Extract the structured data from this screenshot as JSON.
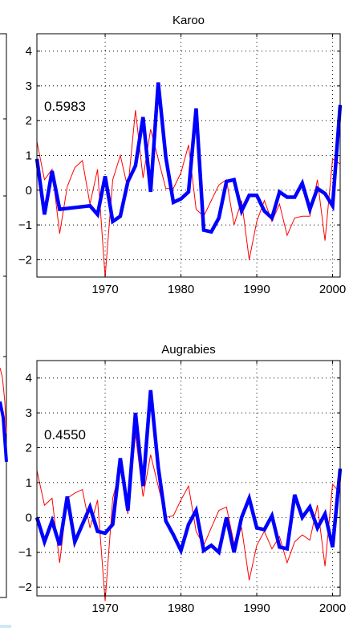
{
  "chart_data": [
    {
      "type": "line",
      "title": "Karoo",
      "annotation": "0.5983",
      "xlim": [
        1961,
        2001
      ],
      "ylim": [
        -2.5,
        4.5
      ],
      "xticks": [
        1970,
        1980,
        1990,
        2000
      ],
      "yticks": [
        -2,
        -1,
        0,
        1,
        2,
        3,
        4
      ],
      "grid": true,
      "series": [
        {
          "color": "#0000ff",
          "x": [
            1961,
            1962,
            1963,
            1964,
            1966,
            1968,
            1969,
            1970,
            1971,
            1972,
            1973,
            1974,
            1975,
            1976,
            1977,
            1978,
            1979,
            1980,
            1981,
            1982,
            1983,
            1984,
            1985,
            1986,
            1987,
            1988,
            1989,
            1990,
            1991,
            1992,
            1993,
            1994,
            1995,
            1996,
            1997,
            1998,
            1999,
            2000,
            2001
          ],
          "y": [
            0.9,
            -0.7,
            0.55,
            -0.55,
            -0.5,
            -0.45,
            -0.7,
            0.4,
            -0.9,
            -0.75,
            0.25,
            0.7,
            2.1,
            -0.05,
            3.1,
            0.95,
            -0.35,
            -0.25,
            -0.05,
            2.35,
            -1.15,
            -1.2,
            -0.8,
            0.25,
            0.3,
            -0.6,
            -0.15,
            -0.15,
            -0.6,
            -0.8,
            -0.05,
            -0.2,
            -0.2,
            0.2,
            -0.55,
            0.05,
            -0.1,
            -0.45,
            2.45
          ]
        },
        {
          "color": "#ff0000",
          "x": [
            1961,
            1962,
            1963,
            1964,
            1965,
            1966,
            1967,
            1968,
            1969,
            1970,
            1971,
            1972,
            1973,
            1974,
            1975,
            1976,
            1977,
            1978,
            1979,
            1980,
            1981,
            1982,
            1983,
            1984,
            1985,
            1986,
            1987,
            1988,
            1989,
            1990,
            1991,
            1992,
            1993,
            1994,
            1995,
            1996,
            1997,
            1998,
            1999,
            2000,
            2001
          ],
          "y": [
            1.4,
            0.3,
            0.6,
            -1.25,
            0.1,
            0.65,
            0.85,
            -0.4,
            0.6,
            -2.5,
            0.3,
            1.0,
            0.05,
            2.3,
            0.35,
            1.75,
            0.9,
            0.05,
            0.05,
            0.5,
            1.3,
            -0.55,
            -0.75,
            -0.3,
            0.15,
            0.3,
            -1.0,
            -0.3,
            -2.0,
            -0.9,
            -0.3,
            -0.9,
            -0.4,
            -1.3,
            -0.8,
            -0.75,
            -0.75,
            0.3,
            -1.45,
            0.9,
            0.75
          ]
        }
      ]
    },
    {
      "type": "line",
      "title": "Augrabies",
      "annotation": "0.4550",
      "xlim": [
        1961,
        2001
      ],
      "ylim": [
        -2.25,
        4.5
      ],
      "xticks": [
        1970,
        1980,
        1990,
        2000
      ],
      "yticks": [
        -2,
        -1,
        0,
        1,
        2,
        3,
        4
      ],
      "grid": true,
      "series": [
        {
          "color": "#0000ff",
          "x": [
            1961,
            1962,
            1963,
            1964,
            1965,
            1966,
            1967,
            1968,
            1969,
            1970,
            1971,
            1972,
            1973,
            1974,
            1975,
            1976,
            1977,
            1978,
            1979,
            1980,
            1981,
            1982,
            1983,
            1984,
            1985,
            1986,
            1987,
            1988,
            1989,
            1990,
            1991,
            1992,
            1993,
            1994,
            1995,
            1996,
            1997,
            1998,
            1999,
            2000,
            2001
          ],
          "y": [
            0,
            -0.7,
            -0.1,
            -0.8,
            0.6,
            -0.7,
            -0.2,
            0.3,
            -0.4,
            -0.45,
            -0.2,
            1.7,
            0.2,
            3.0,
            0.9,
            3.65,
            1.45,
            -0.1,
            -0.5,
            -0.95,
            -0.2,
            0.2,
            -0.95,
            -0.8,
            -1.0,
            0.0,
            -1.0,
            0.0,
            0.55,
            -0.3,
            -0.35,
            0.05,
            -0.85,
            -0.9,
            0.65,
            0.0,
            0.3,
            -0.3,
            0.1,
            -0.85,
            1.4
          ]
        },
        {
          "color": "#ff0000",
          "x": [
            1961,
            1962,
            1963,
            1964,
            1965,
            1966,
            1967,
            1968,
            1969,
            1970,
            1971,
            1972,
            1973,
            1974,
            1975,
            1976,
            1977,
            1978,
            1979,
            1980,
            1981,
            1982,
            1983,
            1984,
            1985,
            1986,
            1987,
            1988,
            1989,
            1990,
            1991,
            1992,
            1993,
            1994,
            1995,
            1996,
            1997,
            1998,
            1999,
            2000,
            2001
          ],
          "y": [
            1.35,
            0.35,
            0.55,
            -1.3,
            0.55,
            0.7,
            0.8,
            -0.3,
            0.5,
            -2.4,
            0.55,
            1.4,
            0.1,
            2.4,
            0.6,
            1.8,
            0.9,
            0.0,
            0.05,
            0.5,
            0.9,
            -0.4,
            -0.8,
            -0.3,
            0.2,
            0.3,
            -0.75,
            -0.3,
            -1.8,
            -0.8,
            -0.4,
            -0.9,
            -0.55,
            -1.3,
            -0.7,
            -0.5,
            -0.65,
            0.35,
            -1.4,
            0.95,
            0.7
          ]
        }
      ]
    }
  ],
  "left_fragment": {
    "line_color": "#ff0000",
    "thick_color": "#0000ff"
  },
  "bottom_strip_color": "#cfe8f5"
}
